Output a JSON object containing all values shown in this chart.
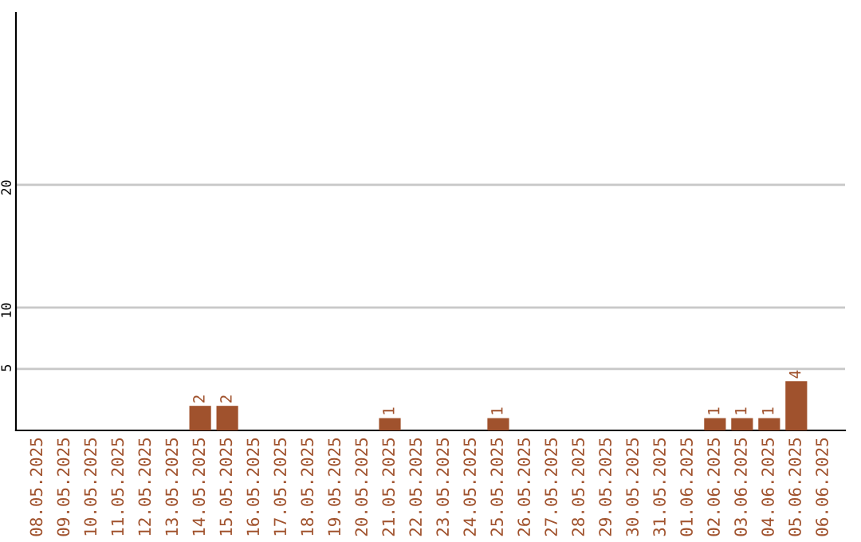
{
  "chart_data": {
    "type": "bar",
    "categories": [
      "08.05.2025",
      "09.05.2025",
      "10.05.2025",
      "11.05.2025",
      "12.05.2025",
      "13.05.2025",
      "14.05.2025",
      "15.05.2025",
      "16.05.2025",
      "17.05.2025",
      "18.05.2025",
      "19.05.2025",
      "20.05.2025",
      "21.05.2025",
      "22.05.2025",
      "23.05.2025",
      "24.05.2025",
      "25.05.2025",
      "26.05.2025",
      "27.05.2025",
      "28.05.2025",
      "29.05.2025",
      "30.05.2025",
      "31.05.2025",
      "01.06.2025",
      "02.06.2025",
      "03.06.2025",
      "04.06.2025",
      "05.06.2025",
      "06.06.2025"
    ],
    "values": [
      0,
      0,
      0,
      0,
      0,
      0,
      2,
      2,
      0,
      0,
      0,
      0,
      0,
      1,
      0,
      0,
      0,
      1,
      0,
      0,
      0,
      0,
      0,
      0,
      0,
      1,
      1,
      1,
      4,
      0
    ],
    "value_labels": [
      null,
      null,
      null,
      null,
      null,
      null,
      "2",
      "2",
      null,
      null,
      null,
      null,
      null,
      "1",
      null,
      null,
      null,
      "1",
      null,
      null,
      null,
      null,
      null,
      null,
      null,
      "1",
      "1",
      "1",
      "4",
      null
    ],
    "color": "#a0522d",
    "ylim": [
      0,
      34
    ],
    "yticks": [
      5,
      10,
      20
    ],
    "grid": "y"
  }
}
